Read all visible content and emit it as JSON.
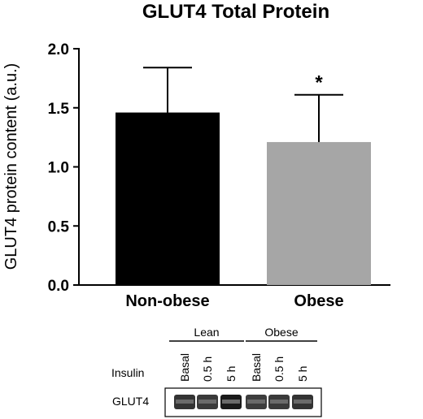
{
  "chart_data": {
    "type": "bar",
    "title": "GLUT4 Total Protein",
    "xlabel": "",
    "ylabel": "GLUT4 protein content (a.u.)",
    "categories": [
      "Non-obese",
      "Obese"
    ],
    "values": [
      1.46,
      1.21
    ],
    "error_upper": [
      0.38,
      0.4
    ],
    "bar_colors": [
      "#000000",
      "#a6a6a6"
    ],
    "ylim": [
      0,
      2.0
    ],
    "yticks": [
      "0.0",
      "0.5",
      "1.0",
      "1.5",
      "2.0"
    ],
    "ytick_values": [
      0,
      0.5,
      1.0,
      1.5,
      2.0
    ],
    "significance": [
      "",
      "*"
    ],
    "grid": false
  },
  "blot": {
    "group_labels": [
      "Lean",
      "Obese"
    ],
    "row_label": "Insulin",
    "lane_labels": [
      "Basal",
      "0.5 h",
      "5 h",
      "Basal",
      "0.5 h",
      "5 h"
    ],
    "protein_label": "GLUT4"
  }
}
